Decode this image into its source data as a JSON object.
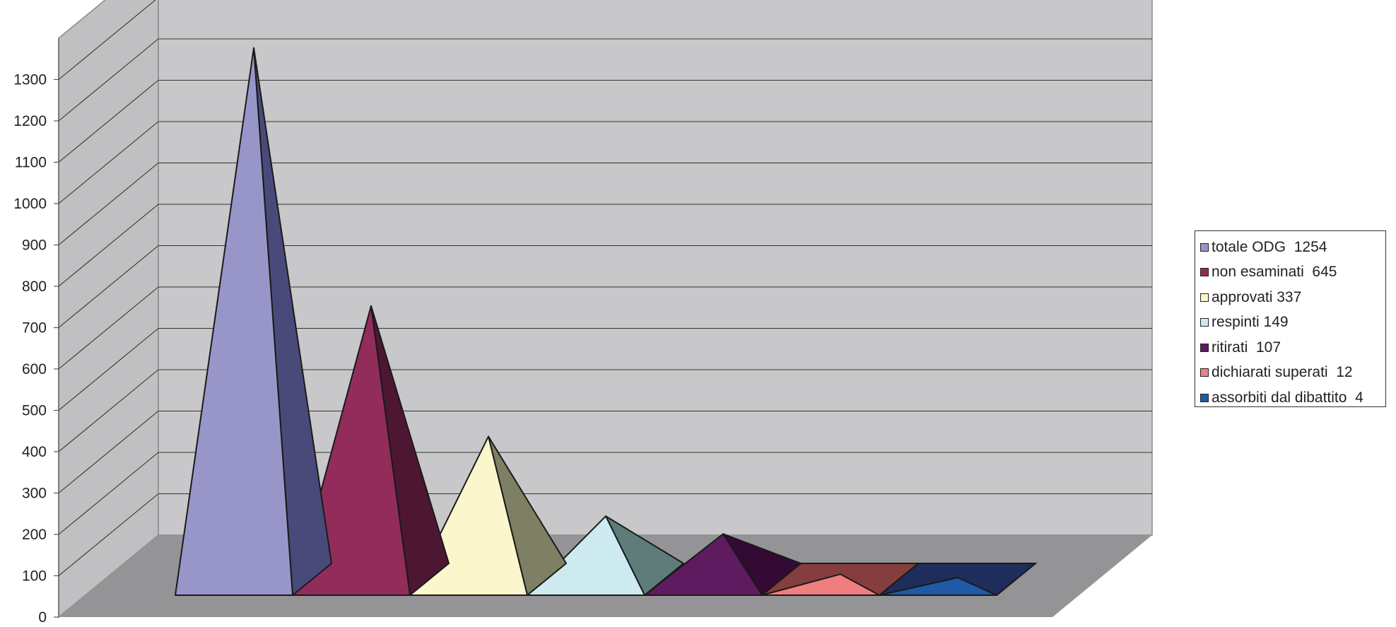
{
  "chart_data": {
    "type": "bar",
    "categories": [
      "totale ODG  1254",
      "non esaminati  645",
      "approvati 337",
      "respinti 149",
      "ritirati  107",
      "dichiarati superati  12",
      "assorbiti dal dibattito  4"
    ],
    "series": [
      {
        "values": [
          1254,
          645,
          337,
          149,
          107,
          12,
          4
        ]
      }
    ],
    "shape": "3d-pyramid",
    "ylim": [
      0,
      1400
    ],
    "yticks": [
      0,
      100,
      200,
      300,
      400,
      500,
      600,
      700,
      800,
      900,
      1000,
      1100,
      1200,
      1300
    ],
    "grid": true,
    "legend": "right",
    "colors": {
      "front": [
        "#9896c9",
        "#922c5b",
        "#fbf6cc",
        "#cdeaf1",
        "#5f1b60",
        "#f07e7e",
        "#1e5aa6"
      ],
      "side": [
        "#4a4a7a",
        "#4d1732",
        "#7f7f64",
        "#5f7c7a",
        "#320a33",
        "#853d3e",
        "#1e2d5c"
      ],
      "back_wall": "#c8c8ca",
      "side_wall": "#c0c0c2",
      "floor": "#949496"
    }
  }
}
